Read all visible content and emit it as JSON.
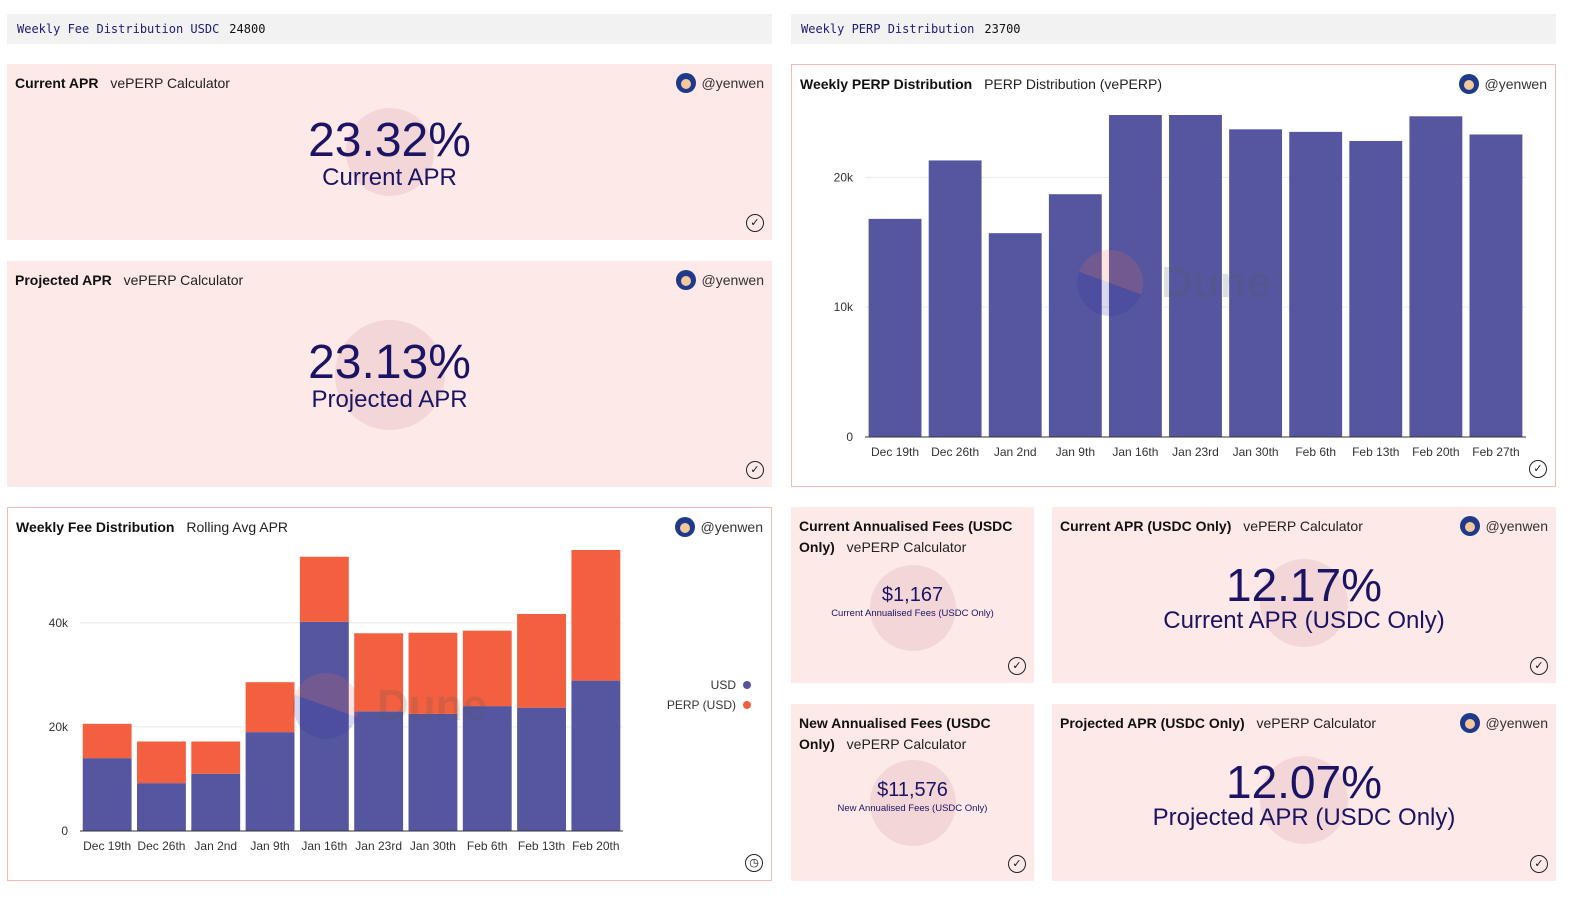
{
  "params": [
    {
      "name": "Weekly Fee Distribution USDC",
      "value": "24800"
    },
    {
      "name": "Weekly PERP Distribution",
      "value": "23700"
    }
  ],
  "cards": {
    "current_apr": {
      "title": "Current APR",
      "subtitle": "vePERP Calculator",
      "author": "@yenwen",
      "value": "23.32%",
      "caption": "Current APR"
    },
    "projected_apr": {
      "title": "Projected APR",
      "subtitle": "vePERP Calculator",
      "author": "@yenwen",
      "value": "23.13%",
      "caption": "Projected APR"
    },
    "perp_dist": {
      "title": "Weekly PERP Distribution",
      "subtitle": "PERP Distribution (vePERP)",
      "author": "@yenwen"
    },
    "fee_dist": {
      "title": "Weekly Fee Distribution",
      "subtitle": "Rolling Avg APR",
      "author": "@yenwen"
    },
    "current_fees": {
      "title": "Current Annualised Fees (USDC Only)",
      "subtitle": "vePERP Calculator",
      "value": "$1,167",
      "caption": "Current Annualised Fees (USDC Only)"
    },
    "new_fees": {
      "title": "New Annualised Fees (USDC Only)",
      "subtitle": "vePERP Calculator",
      "value": "$11,576",
      "caption": "New Annualised Fees (USDC Only)"
    },
    "current_apr_usdc": {
      "title": "Current APR (USDC Only)",
      "subtitle": "vePERP Calculator",
      "author": "@yenwen",
      "value": "12.17%",
      "caption": "Current APR (USDC Only)"
    },
    "projected_apr_usdc": {
      "title": "Projected APR (USDC Only)",
      "subtitle": "vePERP Calculator",
      "author": "@yenwen",
      "value": "12.07%",
      "caption": "Projected APR (USDC Only)"
    }
  },
  "watermark": "Dune",
  "colors": {
    "usd": "#5656a0",
    "perp": "#f2603f",
    "card_bg": "#fde9e7"
  },
  "icons": {
    "status_ok": "check-circle-icon",
    "status_pending": "clock-icon",
    "avatar": "avatar-icon"
  },
  "chart_data": [
    {
      "type": "bar",
      "id": "perp",
      "categories": [
        "Dec 19th",
        "Dec 26th",
        "Jan 2nd",
        "Jan 9th",
        "Jan 16th",
        "Jan 23rd",
        "Jan 30th",
        "Feb 6th",
        "Feb 13th",
        "Feb 20th",
        "Feb 27th"
      ],
      "values": [
        16800,
        21300,
        15700,
        18700,
        24800,
        24800,
        23700,
        23500,
        22800,
        24700,
        23300
      ],
      "ylim": [
        0,
        24800
      ],
      "yticks": [
        {
          "v": 0,
          "label": "0"
        },
        {
          "v": 10000,
          "label": "10k"
        },
        {
          "v": 20000,
          "label": "20k"
        }
      ],
      "grid": true
    },
    {
      "type": "bar",
      "stacked": true,
      "id": "fee",
      "categories": [
        "Dec 19th",
        "Dec 26th",
        "Jan 2nd",
        "Jan 9th",
        "Jan 16th",
        "Jan 23rd",
        "Jan 30th",
        "Feb 6th",
        "Feb 13th",
        "Feb 20th"
      ],
      "series": [
        {
          "name": "USD",
          "values": [
            14000,
            9200,
            11000,
            19000,
            40200,
            23000,
            22500,
            24000,
            23700,
            28900
          ]
        },
        {
          "name": "PERP (USD)",
          "values": [
            6600,
            8000,
            6200,
            9600,
            12500,
            15000,
            15600,
            14500,
            18000,
            25100
          ]
        }
      ],
      "ylim": [
        0,
        54000
      ],
      "yticks": [
        {
          "v": 0,
          "label": "0"
        },
        {
          "v": 20000,
          "label": "20k"
        },
        {
          "v": 40000,
          "label": "40k"
        }
      ],
      "legend": "right",
      "grid": true
    }
  ]
}
